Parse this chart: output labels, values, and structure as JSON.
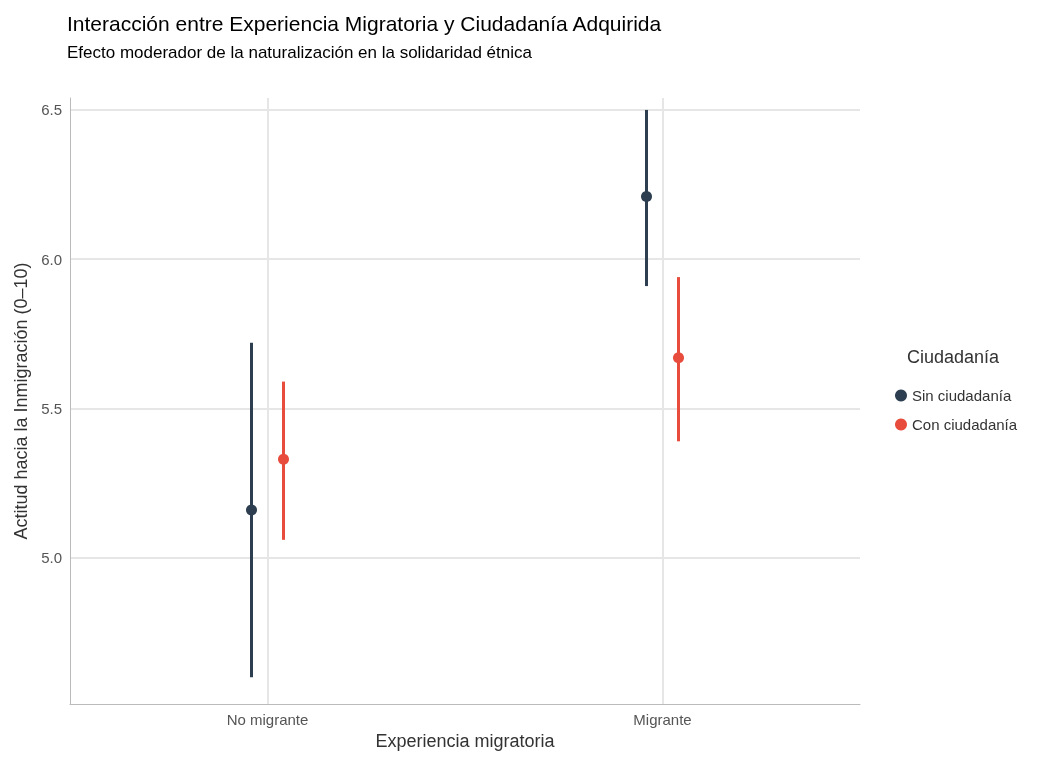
{
  "chart_data": {
    "type": "scatter",
    "title": "Interacción entre Experiencia Migratoria y Ciudadanía Adquirida",
    "subtitle": "Efecto moderador de la naturalización en la solidaridad étnica",
    "xlabel": "Experiencia migratoria",
    "ylabel": "Actitud hacia la Inmigración (0–10)",
    "legend_title": "Ciudadanía",
    "categories": [
      "No migrante",
      "Migrante"
    ],
    "series": [
      {
        "name": "Sin ciudadanía",
        "color": "#2c3e50",
        "values": [
          5.16,
          6.21
        ],
        "errors": [
          [
            4.6,
            5.72
          ],
          [
            5.91,
            6.5
          ]
        ]
      },
      {
        "name": "Con ciudadanía",
        "color": "#e74c3c",
        "values": [
          5.33,
          5.67
        ],
        "errors": [
          [
            5.06,
            5.59
          ],
          [
            5.39,
            5.94
          ]
        ]
      }
    ],
    "ylim": [
      4.51,
      6.54
    ],
    "yticks": [
      {
        "value": 5,
        "label": "5.0"
      },
      {
        "value": 5.5,
        "label": "5.5"
      },
      {
        "value": 6,
        "label": "6.0"
      },
      {
        "value": 6.5,
        "label": "6.5"
      }
    ],
    "grid": true,
    "legend": "right",
    "marker": "circle"
  }
}
